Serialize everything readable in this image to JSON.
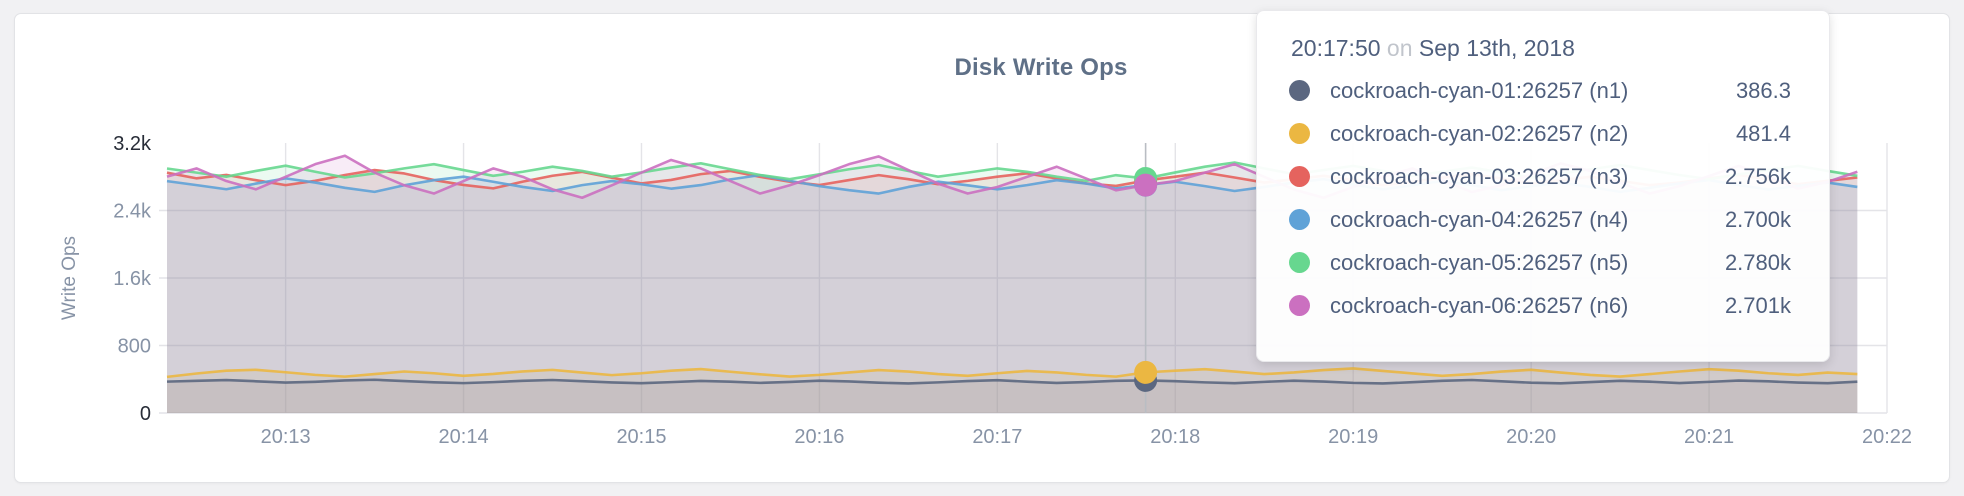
{
  "panel": {
    "title": "Disk Write Ops"
  },
  "chart_data": {
    "type": "line",
    "title": "Disk Write Ops",
    "xlabel": "",
    "ylabel": "Write Ops",
    "ylim": [
      0,
      3200
    ],
    "grid": true,
    "legend_position": "none",
    "time_domain": {
      "start": "20:12:20",
      "end": "20:22:00",
      "span_sec": 580
    },
    "interval_sec": 10,
    "x_ticks": [
      {
        "label": "20:13",
        "offset_sec": 40
      },
      {
        "label": "20:14",
        "offset_sec": 100
      },
      {
        "label": "20:15",
        "offset_sec": 160
      },
      {
        "label": "20:16",
        "offset_sec": 220
      },
      {
        "label": "20:17",
        "offset_sec": 280
      },
      {
        "label": "20:18",
        "offset_sec": 340
      },
      {
        "label": "20:19",
        "offset_sec": 400
      },
      {
        "label": "20:20",
        "offset_sec": 460
      },
      {
        "label": "20:21",
        "offset_sec": 520
      },
      {
        "label": "20:22",
        "offset_sec": 580
      }
    ],
    "y_ticks": [
      {
        "label": "3.2k",
        "value": 3200,
        "emphasis": true
      },
      {
        "label": "2.4k",
        "value": 2400,
        "emphasis": false
      },
      {
        "label": "1.6k",
        "value": 1600,
        "emphasis": false
      },
      {
        "label": "800",
        "value": 800,
        "emphasis": false
      },
      {
        "label": "0",
        "value": 0,
        "emphasis": true
      }
    ],
    "hover_index": 33,
    "hover_offset_sec": 330,
    "series": [
      {
        "name": "cockroach-cyan-01:26257 (n1)",
        "color": "#5b6780",
        "values": [
          372,
          381,
          390,
          376,
          361,
          370,
          386,
          394,
          379,
          364,
          354,
          366,
          381,
          391,
          377,
          362,
          353,
          366,
          380,
          371,
          357,
          368,
          383,
          374,
          359,
          350,
          363,
          378,
          389,
          371,
          356,
          367,
          381,
          386.3,
          377,
          363,
          353,
          369,
          383,
          373,
          357,
          350,
          365,
          381,
          391,
          375,
          359,
          352,
          367,
          381,
          371,
          355,
          369,
          385,
          375,
          361,
          353,
          371
        ]
      },
      {
        "name": "cockroach-cyan-02:26257 (n2)",
        "color": "#ebb742",
        "values": [
          428,
          468,
          502,
          512,
          483,
          452,
          431,
          461,
          492,
          471,
          441,
          463,
          493,
          511,
          479,
          449,
          471,
          501,
          521,
          489,
          459,
          432,
          452,
          481,
          509,
          491,
          462,
          441,
          471,
          499,
          481,
          452,
          431,
          481.4,
          501,
          519,
          491,
          461,
          481,
          509,
          528,
          499,
          469,
          441,
          462,
          491,
          512,
          479,
          451,
          432,
          461,
          492,
          519,
          501,
          471,
          451,
          479,
          462
        ]
      },
      {
        "name": "cockroach-cyan-03:26257 (n3)",
        "color": "#e5635e",
        "values": [
          2848,
          2781,
          2822,
          2759,
          2701,
          2752,
          2821,
          2879,
          2839,
          2761,
          2703,
          2662,
          2742,
          2812,
          2858,
          2789,
          2721,
          2762,
          2831,
          2869,
          2799,
          2741,
          2702,
          2761,
          2819,
          2771,
          2712,
          2751,
          2801,
          2841,
          2779,
          2721,
          2691,
          2756,
          2801,
          2849,
          2791,
          2731,
          2771,
          2811,
          2759,
          2701,
          2741,
          2789,
          2831,
          2779,
          2722,
          2761,
          2799,
          2751,
          2701,
          2731,
          2781,
          2821,
          2769,
          2712,
          2752,
          2791
        ]
      },
      {
        "name": "cockroach-cyan-04:26257 (n4)",
        "color": "#5fa2d7",
        "values": [
          2748,
          2701,
          2652,
          2719,
          2781,
          2731,
          2669,
          2621,
          2699,
          2759,
          2801,
          2741,
          2679,
          2631,
          2701,
          2749,
          2711,
          2659,
          2701,
          2769,
          2819,
          2751,
          2689,
          2641,
          2601,
          2679,
          2741,
          2699,
          2651,
          2701,
          2759,
          2719,
          2661,
          2700,
          2741,
          2689,
          2631,
          2679,
          2731,
          2771,
          2709,
          2651,
          2699,
          2749,
          2701,
          2641,
          2689,
          2729,
          2679,
          2621,
          2669,
          2721,
          2761,
          2701,
          2649,
          2691,
          2731,
          2679
        ]
      },
      {
        "name": "cockroach-cyan-05:26257 (n5)",
        "color": "#67d78f",
        "values": [
          2898,
          2849,
          2801,
          2869,
          2931,
          2859,
          2791,
          2841,
          2899,
          2949,
          2879,
          2811,
          2859,
          2919,
          2869,
          2801,
          2851,
          2909,
          2959,
          2889,
          2821,
          2771,
          2829,
          2889,
          2939,
          2869,
          2801,
          2849,
          2899,
          2859,
          2801,
          2751,
          2819,
          2780,
          2851,
          2919,
          2969,
          2899,
          2831,
          2879,
          2929,
          2869,
          2811,
          2859,
          2909,
          2851,
          2791,
          2839,
          2889,
          2939,
          2879,
          2821,
          2771,
          2829,
          2879,
          2929,
          2869,
          2811
        ]
      },
      {
        "name": "cockroach-cyan-06:26257 (n6)",
        "color": "#cb70c0",
        "values": [
          2801,
          2899,
          2749,
          2651,
          2799,
          2949,
          3049,
          2849,
          2699,
          2601,
          2749,
          2899,
          2799,
          2651,
          2551,
          2699,
          2849,
          2999,
          2899,
          2749,
          2601,
          2699,
          2819,
          2949,
          3041,
          2879,
          2719,
          2601,
          2679,
          2799,
          2919,
          2779,
          2639,
          2701,
          2749,
          2849,
          2949,
          2799,
          2649,
          2551,
          2679,
          2799,
          2899,
          2759,
          2619,
          2699,
          2829,
          2959,
          2869,
          2729,
          2601,
          2689,
          2809,
          2929,
          2799,
          2659,
          2739,
          2859
        ]
      }
    ]
  },
  "tooltip": {
    "time": "20:17:50",
    "conjunction": "on",
    "date": "Sep 13th, 2018",
    "rows": [
      {
        "label": "cockroach-cyan-01:26257 (n1)",
        "value": "386.3",
        "color": "#5b6780"
      },
      {
        "label": "cockroach-cyan-02:26257 (n2)",
        "value": "481.4",
        "color": "#ebb742"
      },
      {
        "label": "cockroach-cyan-03:26257 (n3)",
        "value": "2.756k",
        "color": "#e5635e"
      },
      {
        "label": "cockroach-cyan-04:26257 (n4)",
        "value": "2.700k",
        "color": "#5fa2d7"
      },
      {
        "label": "cockroach-cyan-05:26257 (n5)",
        "value": "2.780k",
        "color": "#67d78f"
      },
      {
        "label": "cockroach-cyan-06:26257 (n6)",
        "value": "2.701k",
        "color": "#cb70c0"
      }
    ]
  },
  "colors": {
    "page_bg": "#f1f1f3",
    "card_bg": "#ffffff",
    "grid": "#e4e4e8",
    "axis_tick": "#8793a6",
    "axis_tick_emphasis": "#282d38",
    "title": "#5f7087",
    "guideline": "#b9bdc3"
  }
}
